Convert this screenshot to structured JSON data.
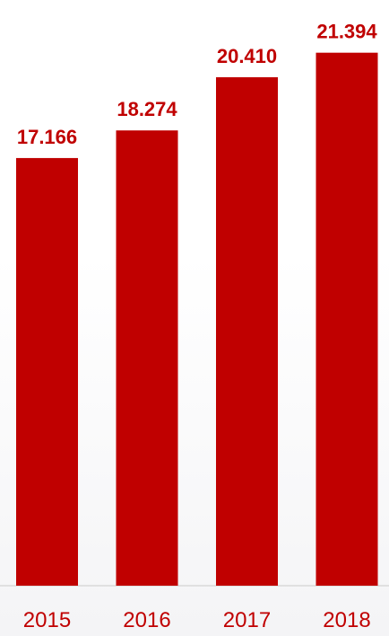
{
  "chart_data": {
    "type": "bar",
    "categories": [
      "2015",
      "2016",
      "2017",
      "2018"
    ],
    "values": [
      17.166,
      18.274,
      20.41,
      21.394
    ],
    "value_labels": [
      "17.166",
      "18.274",
      "20.410",
      "21.394"
    ],
    "title": "",
    "xlabel": "",
    "ylabel": "",
    "ylim": [
      0,
      22.5
    ],
    "grid": false,
    "legend": "none",
    "colors": {
      "bar": "#c00000",
      "label": "#c00000",
      "tick": "#c00000",
      "axis": "#d9d9d9"
    }
  }
}
